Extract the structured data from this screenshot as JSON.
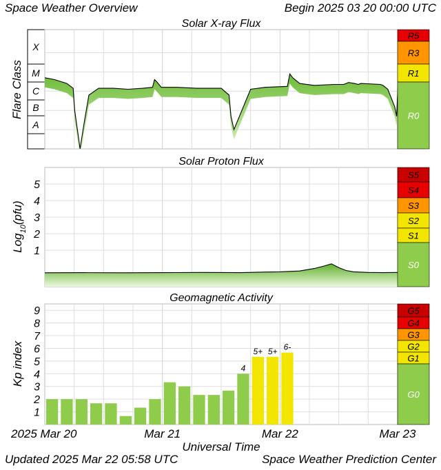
{
  "header": {
    "title": "Space Weather Overview",
    "begin": "Begin 2025 03 20 00:00 UTC"
  },
  "footer": {
    "updated": "Updated 2025 Mar 22 05:58 UTC",
    "source": "Space Weather Prediction Center"
  },
  "colors": {
    "green": "#8fcc4c",
    "yellow": "#f2e600",
    "orange": "#ff9600",
    "red": "#e60000",
    "darkred": "#c80000",
    "grid": "#dddddd",
    "fill_light": "#d8f2b8",
    "fill_dark": "#7cc43e"
  },
  "chart_data": [
    {
      "id": "xray",
      "type": "area",
      "title": "Solar X-ray Flux",
      "ylabel": "Flare Class",
      "x_unit": "hours since 2025-03-20 00:00 UTC",
      "x_range": [
        0,
        72
      ],
      "y_unit": "log10 W/m^2",
      "y_range": [
        -9,
        -2.8
      ],
      "class_labels": [
        {
          "label": "X",
          "value": -3.5
        },
        {
          "label": "M",
          "value": -4.5
        },
        {
          "label": "C",
          "value": -5.5
        },
        {
          "label": "B",
          "value": -6.5
        },
        {
          "label": "A",
          "value": -7.5
        }
      ],
      "series": {
        "x": [
          0,
          2,
          4.5,
          5.8,
          6.1,
          7.2,
          8,
          9,
          11,
          14,
          17,
          20,
          22,
          22.4,
          22.8,
          23.8,
          27,
          31,
          36,
          37.6,
          38,
          38.6,
          42,
          45,
          49.5,
          50,
          50.6,
          52,
          55,
          59,
          61,
          62,
          63.2,
          64,
          64.5,
          68.5,
          69,
          70,
          71.4,
          71.8,
          72.1
        ],
        "y": [
          -5.3,
          -5.4,
          -5.6,
          -5.85,
          -7,
          -9,
          -7.7,
          -6.2,
          -5.85,
          -5.85,
          -5.9,
          -5.85,
          -5.8,
          -5.4,
          -5.5,
          -5.8,
          -5.8,
          -5.85,
          -5.85,
          -6.2,
          -7.3,
          -8,
          -5.9,
          -5.8,
          -5.75,
          -5.1,
          -5.3,
          -5.6,
          -5.7,
          -5.65,
          -5.65,
          -5.55,
          -5.6,
          -5.65,
          -5.6,
          -5.65,
          -5.7,
          -5.9,
          -6.8,
          -7.3,
          -5.6
        ]
      },
      "scale": [
        {
          "label": "R5",
          "color": "red"
        },
        {
          "label": "R3",
          "color": "orange"
        },
        {
          "label": "R1",
          "color": "yellow"
        },
        {
          "label": "R0",
          "color": "green"
        }
      ]
    },
    {
      "id": "proton",
      "type": "area",
      "title": "Solar Proton Flux",
      "ylabel": "Log10(pfu)",
      "ylabel_base": "Log",
      "ylabel_sub": "10",
      "ylabel_rest": "(pfu)",
      "x_unit": "hours since 2025-03-20 00:00 UTC",
      "x_range": [
        0,
        72
      ],
      "y_range": [
        -1.2,
        6
      ],
      "yticks": [
        1,
        2,
        3,
        4,
        5
      ],
      "series": {
        "x": [
          0,
          8,
          16,
          24,
          32,
          40,
          44,
          48,
          52,
          55,
          57,
          58.5,
          60,
          61.5,
          63,
          66,
          69,
          72
        ],
        "y": [
          -0.36,
          -0.35,
          -0.36,
          -0.35,
          -0.34,
          -0.35,
          -0.32,
          -0.3,
          -0.25,
          -0.1,
          0.05,
          0.18,
          -0.05,
          -0.22,
          -0.3,
          -0.34,
          -0.35,
          -0.34
        ]
      },
      "scale": [
        {
          "label": "S5",
          "color": "darkred"
        },
        {
          "label": "S4",
          "color": "red"
        },
        {
          "label": "S3",
          "color": "orange"
        },
        {
          "label": "S2",
          "color": "yellow"
        },
        {
          "label": "S1",
          "color": "yellow"
        },
        {
          "label": "S0",
          "color": "green"
        }
      ]
    },
    {
      "id": "kp",
      "type": "bar",
      "title": "Geomagnetic Activity",
      "ylabel": "Kp index",
      "xlabel": "Universal Time",
      "x_unit": "hours since 2025-03-20 00:00 UTC",
      "x_range": [
        0,
        72
      ],
      "y_range": [
        0,
        9.5
      ],
      "yticks": [
        1,
        2,
        3,
        4,
        5,
        6,
        7,
        8,
        9
      ],
      "bar_hours": 3,
      "values": [
        2,
        2,
        2,
        1.67,
        1.67,
        0.67,
        1.33,
        2,
        3.33,
        3,
        2.33,
        2.33,
        2.67,
        4,
        5.33,
        5.33,
        5.67
      ],
      "bar_labels": [
        "",
        "",
        "",
        "",
        "",
        "",
        "",
        "",
        "",
        "",
        "",
        "",
        "",
        "4",
        "5+",
        "5+",
        "6-"
      ],
      "storm_threshold": 5,
      "scale": [
        {
          "label": "G5",
          "color": "darkred"
        },
        {
          "label": "G4",
          "color": "red"
        },
        {
          "label": "G3",
          "color": "orange"
        },
        {
          "label": "G2",
          "color": "yellow"
        },
        {
          "label": "G1",
          "color": "yellow"
        },
        {
          "label": "G0",
          "color": "green"
        }
      ],
      "x_tick_labels": [
        {
          "label": "2025 Mar 20",
          "hour": 0
        },
        {
          "label": "Mar 21",
          "hour": 24
        },
        {
          "label": "Mar 22",
          "hour": 48
        },
        {
          "label": "Mar 23",
          "hour": 72
        }
      ]
    }
  ]
}
